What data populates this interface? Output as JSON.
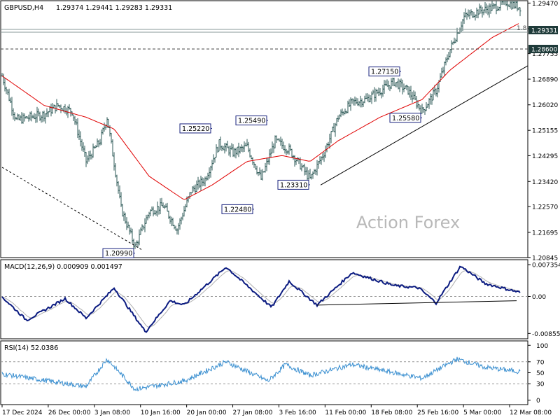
{
  "header": {
    "symbol": "GBPUSD,H4",
    "ohlc": "1.29374 1.29441 1.29283 1.29331"
  },
  "watermark": "Action Forex",
  "price_panel": {
    "y_ticks": [
      "1.29470",
      "1.28600",
      "1.27755",
      "1.26890",
      "1.26020",
      "1.25155",
      "1.24295",
      "1.23420",
      "1.22570",
      "1.21695",
      "1.20845"
    ],
    "current_price": "1.29331",
    "level_price": "1.28600",
    "line_marker": "1.8",
    "annotations": [
      {
        "label": "1.20990",
        "price": 1.2099,
        "bar": 190
      },
      {
        "label": "1.25220",
        "price": 1.2522,
        "bar": 300
      },
      {
        "label": "1.22480",
        "price": 1.2248,
        "bar": 360
      },
      {
        "label": "1.25490",
        "price": 1.2549,
        "bar": 380
      },
      {
        "label": "1.23310",
        "price": 1.2331,
        "bar": 440
      },
      {
        "label": "1.27150",
        "price": 1.2715,
        "bar": 570
      },
      {
        "label": "1.25580",
        "price": 1.2558,
        "bar": 600
      }
    ]
  },
  "macd_panel": {
    "label": "MACD(12,26,9) 0.000909 0.001497",
    "y_ticks": [
      "0.007354",
      "0.00",
      "-0.008558"
    ]
  },
  "rsi_panel": {
    "label": "RSI(14) 52.0386",
    "y_ticks": [
      "100",
      "70",
      "50",
      "30",
      "0"
    ]
  },
  "x_ticks": [
    "17 Dec 2024",
    "26 Dec 00:00",
    "3 Jan 08:00",
    "10 Jan 16:00",
    "20 Jan 00:00",
    "27 Jan 08:00",
    "3 Feb 16:00",
    "11 Feb 00:00",
    "18 Feb 08:00",
    "25 Feb 16:00",
    "5 Mar 00:00",
    "12 Mar 08:00"
  ],
  "colors": {
    "candle": "#2e5a57",
    "ma": "#e00000",
    "macd_line": "#0a1a80",
    "macd_signal": "#b0b0b0",
    "rsi": "#3a8fd0",
    "price_label_bg": "#1f3b3a",
    "annotation_border": "#1a237e"
  },
  "chart_data": {
    "type": "line",
    "symbol": "GBPUSD",
    "timeframe": "H4",
    "x_range": [
      "17 Dec 2024",
      "13 Mar 2025"
    ],
    "ylim": [
      1.2084,
      1.2955
    ],
    "close_key_points": [
      {
        "bar": 0,
        "close": 1.27
      },
      {
        "bar": 20,
        "close": 1.255
      },
      {
        "bar": 40,
        "close": 1.256
      },
      {
        "bar": 60,
        "close": 1.257
      },
      {
        "bar": 80,
        "close": 1.26
      },
      {
        "bar": 100,
        "close": 1.258
      },
      {
        "bar": 120,
        "close": 1.241
      },
      {
        "bar": 140,
        "close": 1.248
      },
      {
        "bar": 150,
        "close": 1.256
      },
      {
        "bar": 170,
        "close": 1.225
      },
      {
        "bar": 190,
        "close": 1.212
      },
      {
        "bar": 210,
        "close": 1.224
      },
      {
        "bar": 230,
        "close": 1.226
      },
      {
        "bar": 250,
        "close": 1.218
      },
      {
        "bar": 270,
        "close": 1.231
      },
      {
        "bar": 290,
        "close": 1.235
      },
      {
        "bar": 310,
        "close": 1.247
      },
      {
        "bar": 330,
        "close": 1.244
      },
      {
        "bar": 350,
        "close": 1.246
      },
      {
        "bar": 370,
        "close": 1.235
      },
      {
        "bar": 390,
        "close": 1.248
      },
      {
        "bar": 410,
        "close": 1.245
      },
      {
        "bar": 425,
        "close": 1.24
      },
      {
        "bar": 440,
        "close": 1.235
      },
      {
        "bar": 460,
        "close": 1.244
      },
      {
        "bar": 480,
        "close": 1.256
      },
      {
        "bar": 500,
        "close": 1.261
      },
      {
        "bar": 520,
        "close": 1.262
      },
      {
        "bar": 540,
        "close": 1.265
      },
      {
        "bar": 560,
        "close": 1.268
      },
      {
        "bar": 580,
        "close": 1.265
      },
      {
        "bar": 600,
        "close": 1.258
      },
      {
        "bar": 620,
        "close": 1.265
      },
      {
        "bar": 640,
        "close": 1.279
      },
      {
        "bar": 660,
        "close": 1.29
      },
      {
        "bar": 680,
        "close": 1.292
      },
      {
        "bar": 700,
        "close": 1.293
      },
      {
        "bar": 720,
        "close": 1.295
      },
      {
        "bar": 740,
        "close": 1.2933
      }
    ],
    "macd_key_points": [
      {
        "bar": 0,
        "macd": -0.0001
      },
      {
        "bar": 35,
        "macd": -0.0055
      },
      {
        "bar": 90,
        "macd": -0.0005
      },
      {
        "bar": 120,
        "macd": -0.005
      },
      {
        "bar": 160,
        "macd": 0.002
      },
      {
        "bar": 205,
        "macd": -0.0082
      },
      {
        "bar": 240,
        "macd": -0.001
      },
      {
        "bar": 260,
        "macd": -0.002
      },
      {
        "bar": 320,
        "macd": 0.0068
      },
      {
        "bar": 385,
        "macd": -0.0025
      },
      {
        "bar": 410,
        "macd": 0.0035
      },
      {
        "bar": 450,
        "macd": -0.002
      },
      {
        "bar": 500,
        "macd": 0.0055
      },
      {
        "bar": 560,
        "macd": 0.0025
      },
      {
        "bar": 595,
        "macd": 0.002
      },
      {
        "bar": 620,
        "macd": -0.0015
      },
      {
        "bar": 655,
        "macd": 0.007
      },
      {
        "bar": 690,
        "macd": 0.003
      },
      {
        "bar": 740,
        "macd": 0.0009
      }
    ],
    "rsi_key_points": [
      {
        "bar": 0,
        "rsi": 48
      },
      {
        "bar": 40,
        "rsi": 40
      },
      {
        "bar": 120,
        "rsi": 25
      },
      {
        "bar": 150,
        "rsi": 75
      },
      {
        "bar": 190,
        "rsi": 20
      },
      {
        "bar": 260,
        "rsi": 35
      },
      {
        "bar": 320,
        "rsi": 70
      },
      {
        "bar": 380,
        "rsi": 35
      },
      {
        "bar": 405,
        "rsi": 65
      },
      {
        "bar": 440,
        "rsi": 45
      },
      {
        "bar": 500,
        "rsi": 65
      },
      {
        "bar": 600,
        "rsi": 40
      },
      {
        "bar": 650,
        "rsi": 75
      },
      {
        "bar": 690,
        "rsi": 60
      },
      {
        "bar": 740,
        "rsi": 52
      }
    ],
    "moving_average_key_points": [
      {
        "bar": 0,
        "value": 1.27
      },
      {
        "bar": 60,
        "value": 1.26
      },
      {
        "bar": 120,
        "value": 1.256
      },
      {
        "bar": 160,
        "value": 1.252
      },
      {
        "bar": 210,
        "value": 1.236
      },
      {
        "bar": 260,
        "value": 1.228
      },
      {
        "bar": 300,
        "value": 1.233
      },
      {
        "bar": 350,
        "value": 1.241
      },
      {
        "bar": 400,
        "value": 1.243
      },
      {
        "bar": 440,
        "value": 1.241
      },
      {
        "bar": 480,
        "value": 1.248
      },
      {
        "bar": 540,
        "value": 1.256
      },
      {
        "bar": 600,
        "value": 1.262
      },
      {
        "bar": 640,
        "value": 1.272
      },
      {
        "bar": 700,
        "value": 1.283
      },
      {
        "bar": 740,
        "value": 1.288
      }
    ],
    "trendlines": [
      {
        "name": "price-dashed",
        "from": {
          "bar": 0,
          "price": 1.239
        },
        "to": {
          "bar": 200,
          "price": 1.211
        }
      },
      {
        "name": "price-support",
        "from": {
          "bar": 455,
          "price": 1.233
        },
        "to": {
          "bar": 755,
          "price": 1.274
        }
      },
      {
        "name": "macd-support",
        "from": {
          "bar": 450,
          "macd": -0.002
        },
        "to": {
          "bar": 735,
          "macd": -0.001
        }
      }
    ],
    "grid": false
  }
}
